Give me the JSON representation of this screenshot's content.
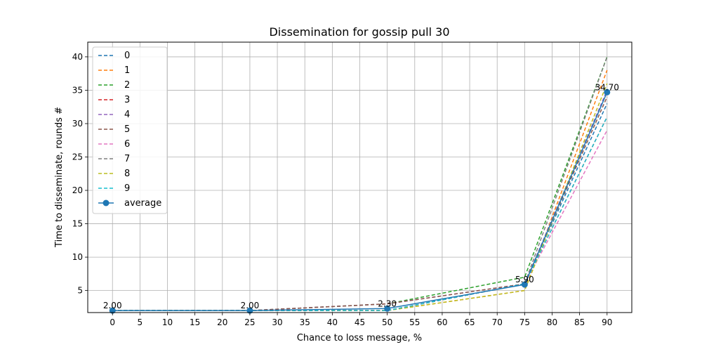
{
  "chart_data": {
    "type": "line",
    "title": "Dissemination for gossip pull 30",
    "xlabel": "Chance to loss message, %",
    "ylabel": "Time to disseminate, rounds #",
    "x": [
      0,
      25,
      50,
      75,
      90
    ],
    "xlim": [
      -4.5,
      94.5
    ],
    "ylim": [
      1.7,
      42.2
    ],
    "xticks": [
      0,
      5,
      10,
      15,
      20,
      25,
      30,
      35,
      40,
      45,
      50,
      55,
      60,
      65,
      70,
      75,
      80,
      85,
      90
    ],
    "yticks": [
      5,
      10,
      15,
      20,
      25,
      30,
      35,
      40
    ],
    "grid": true,
    "legend_position": "upper left",
    "series": [
      {
        "name": "0",
        "color": "#1f77b4",
        "dash": true,
        "values": [
          2,
          2,
          2,
          6,
          33
        ]
      },
      {
        "name": "1",
        "color": "#ff7f0e",
        "dash": true,
        "values": [
          2,
          2,
          2,
          5,
          38
        ]
      },
      {
        "name": "2",
        "color": "#2ca02c",
        "dash": true,
        "values": [
          2,
          2,
          3,
          7,
          40
        ]
      },
      {
        "name": "3",
        "color": "#d62728",
        "dash": true,
        "values": [
          2,
          2,
          2,
          6,
          31
        ]
      },
      {
        "name": "4",
        "color": "#9467bd",
        "dash": true,
        "values": [
          2,
          2,
          3,
          6,
          35
        ]
      },
      {
        "name": "5",
        "color": "#8c564b",
        "dash": true,
        "values": [
          2,
          2,
          3,
          6,
          34
        ]
      },
      {
        "name": "6",
        "color": "#e377c2",
        "dash": true,
        "values": [
          2,
          2,
          2,
          6,
          29
        ]
      },
      {
        "name": "7",
        "color": "#7f7f7f",
        "dash": true,
        "values": [
          2,
          2,
          2,
          6,
          40
        ]
      },
      {
        "name": "8",
        "color": "#bcbd22",
        "dash": true,
        "values": [
          2,
          2,
          2,
          5,
          36
        ]
      },
      {
        "name": "9",
        "color": "#17becf",
        "dash": true,
        "values": [
          2,
          2,
          2,
          6,
          31
        ]
      },
      {
        "name": "average",
        "color": "#1f77b4",
        "dash": false,
        "marker": true,
        "values": [
          2.0,
          2.0,
          2.3,
          5.9,
          34.7
        ]
      }
    ],
    "annotations": [
      "2.00",
      "2.00",
      "2.30",
      "5.90",
      "34.70"
    ]
  }
}
